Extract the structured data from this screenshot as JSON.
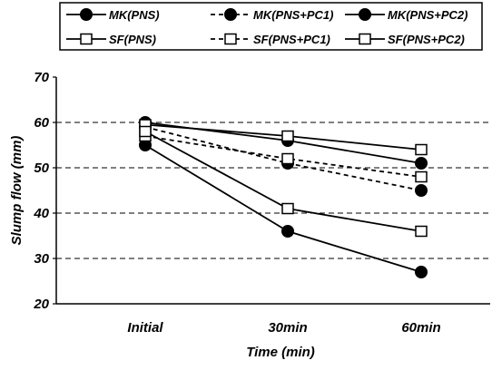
{
  "chart_data": {
    "type": "line",
    "xlabel": "Time (min)",
    "ylabel": "Slump flow (mm)",
    "categories": [
      "Initial",
      "30min",
      "60min"
    ],
    "ylim": [
      20,
      70
    ],
    "yticks": [
      20,
      30,
      40,
      50,
      60,
      70
    ],
    "grid": "horizontal dashed",
    "legend_position": "top",
    "series": [
      {
        "name": "MK(PNS)",
        "values": [
          60,
          56,
          51
        ],
        "marker": "filled-circle",
        "line": "solid"
      },
      {
        "name": "MK(PNS+PC1)",
        "values": [
          59,
          51,
          45
        ],
        "marker": "filled-circle",
        "line": "dashed"
      },
      {
        "name": "MK(PNS+PC2)",
        "values": [
          55,
          36,
          27
        ],
        "marker": "filled-circle",
        "line": "solid"
      },
      {
        "name": "SF(PNS)",
        "values": [
          59.5,
          57,
          54
        ],
        "marker": "open-square",
        "line": "solid"
      },
      {
        "name": "SF(PNS+PC1)",
        "values": [
          57,
          52,
          48
        ],
        "marker": "open-square",
        "line": "dashed"
      },
      {
        "name": "SF(PNS+PC2)",
        "values": [
          58,
          41,
          36
        ],
        "marker": "open-square",
        "line": "solid"
      }
    ]
  }
}
